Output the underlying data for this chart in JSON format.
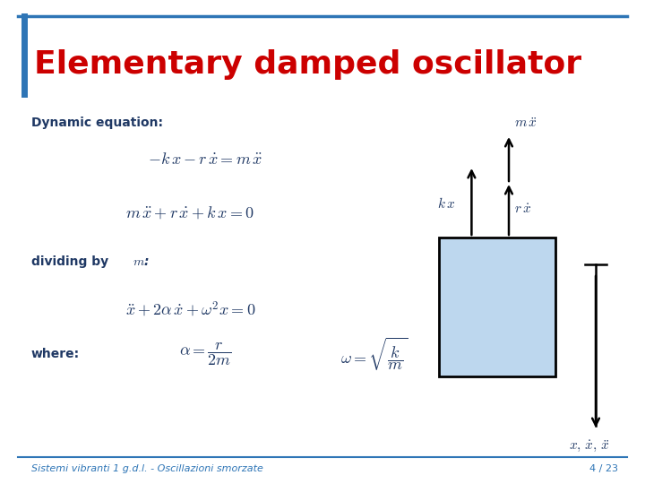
{
  "title": "Elementary damped oscillator",
  "title_color": "#CC0000",
  "title_fontsize": 26,
  "background_color": "#FFFFFF",
  "border_color": "#2E75B6",
  "text_color_blue": "#1F3864",
  "footer_text": "Sistemi vibranti 1 g.d.l. - Oscillazioni smorzate",
  "footer_page": "4 / 23",
  "footer_color": "#2E75B6",
  "label_dynamic": "Dynamic equation:",
  "label_where": "where:",
  "eq1": "$-k\\,x - r\\,\\dot{x} = m\\,\\ddot{x}$",
  "eq2": "$m\\,\\ddot{x} + r\\,\\dot{x} + k\\,x = 0$",
  "eq3": "$\\ddot{x} + 2\\alpha\\,\\dot{x} + \\omega^2 x = 0$",
  "eq_alpha": "$\\alpha = \\dfrac{r}{2m}$",
  "eq_omega": "$\\omega = \\sqrt{\\dfrac{k}{m}}$",
  "box_color": "#BDD7EE",
  "box_edge_color": "#000000",
  "label_kx": "$k\\,x$",
  "label_rdot": "$r\\,\\dot{x}$",
  "label_mddot": "$m\\,\\ddot{x}$",
  "label_xdots": "$x,\\,\\dot{x},\\,\\ddot{x}$"
}
